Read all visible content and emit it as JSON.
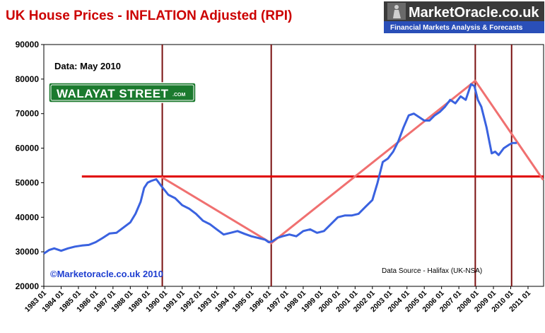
{
  "header": {
    "title": "UK House Prices - INFLATION Adjusted (RPI)"
  },
  "logo": {
    "name": "MarketOracle.co.uk",
    "tagline": "Financial Markets Analysis & Forecasts"
  },
  "sign": {
    "main": "WALAYAT STREET",
    "suffix": ".COM"
  },
  "annotations": {
    "data_date": "Data: May 2010",
    "copyright": "©Marketoracle.co.uk  2010",
    "source": "Data Source - Halifax (UK-NSA)"
  },
  "colors": {
    "price_line": "#3a62e0",
    "trend_line": "#f07070",
    "level_line": "#e00000",
    "marker_line": "#7a1010",
    "title": "#cc0000"
  },
  "chart_data": {
    "type": "line",
    "title": "UK House Prices - INFLATION Adjusted (RPI)",
    "xlabel": "",
    "ylabel": "",
    "ylim": [
      20000,
      90000
    ],
    "yticks": [
      "20000",
      "30000",
      "40000",
      "50000",
      "60000",
      "70000",
      "80000",
      "90000"
    ],
    "xlim": [
      1983.0,
      2011.9
    ],
    "xticks": [
      "1983 01",
      "1984 01",
      "1985 01",
      "1986 01",
      "1987 01",
      "1988 01",
      "1989 01",
      "1990 01",
      "1991 01",
      "1992 01",
      "1993 01",
      "1994 01",
      "1995 01",
      "1996 01",
      "1997 01",
      "1998 01",
      "1999 01",
      "2000 01",
      "2001 01",
      "2002 01",
      "2003 01",
      "2004 01",
      "2005 01",
      "2006 01",
      "2007 01",
      "2008 01",
      "2009 01",
      "2010 01",
      "2011 01"
    ],
    "grid": false,
    "series": [
      {
        "x": [
          1983.0,
          1983.3,
          1983.6,
          1984.0,
          1984.4,
          1984.8,
          1985.2,
          1985.6,
          1986.0,
          1986.4,
          1986.8,
          1987.2,
          1987.6,
          1988.0,
          1988.3,
          1988.6,
          1988.8,
          1989.0,
          1989.2,
          1989.5,
          1989.8,
          1990.2,
          1990.6,
          1991.0,
          1991.4,
          1991.8,
          1992.2,
          1992.6,
          1993.0,
          1993.4,
          1993.8,
          1994.2,
          1994.6,
          1995.0,
          1995.4,
          1995.8,
          1996.0,
          1996.2,
          1996.5,
          1996.8,
          1997.2,
          1997.6,
          1998.0,
          1998.4,
          1998.8,
          1999.2,
          1999.6,
          2000.0,
          2000.4,
          2000.8,
          2001.2,
          2001.6,
          2002.0,
          2002.3,
          2002.6,
          2002.9,
          2003.2,
          2003.5,
          2003.8,
          2004.1,
          2004.4,
          2004.7,
          2005.0,
          2005.3,
          2005.6,
          2005.9,
          2006.2,
          2006.5,
          2006.8,
          2007.1,
          2007.4,
          2007.7,
          2007.9,
          2008.1,
          2008.3,
          2008.6,
          2008.9,
          2009.1,
          2009.3,
          2009.6,
          2009.9,
          2010.1,
          2010.35
        ],
        "y": [
          29500,
          30500,
          31000,
          30300,
          31000,
          31500,
          31800,
          32000,
          32800,
          34000,
          35300,
          35500,
          37000,
          38500,
          41000,
          44500,
          48500,
          50000,
          50500,
          51000,
          49000,
          46500,
          45500,
          43500,
          42500,
          41000,
          39000,
          38000,
          36500,
          35000,
          35500,
          36000,
          35200,
          34500,
          34000,
          33500,
          32800,
          33000,
          34000,
          34500,
          35000,
          34500,
          36000,
          36500,
          35500,
          36000,
          38000,
          40000,
          40500,
          40500,
          41000,
          43000,
          45000,
          50000,
          56000,
          57000,
          59000,
          62000,
          66000,
          69500,
          70000,
          69000,
          68000,
          68000,
          69500,
          70500,
          72000,
          74000,
          73000,
          75000,
          74000,
          78500,
          78000,
          74000,
          72000,
          66000,
          58500,
          59000,
          58000,
          60000,
          61000,
          61500,
          61500
        ]
      }
    ],
    "trend_lines": [
      {
        "x": [
          1989.85,
          1996.15
        ],
        "y": [
          51500,
          32500
        ]
      },
      {
        "x": [
          1996.15,
          2007.95
        ],
        "y": [
          32500,
          79500
        ]
      },
      {
        "x": [
          2007.95,
          2011.85
        ],
        "y": [
          79500,
          51000
        ]
      }
    ],
    "level_line": {
      "y": 51800,
      "x": [
        1985.2,
        2011.9
      ]
    },
    "marker_years": [
      1989.85,
      1996.15,
      2007.95,
      2010.05
    ]
  }
}
